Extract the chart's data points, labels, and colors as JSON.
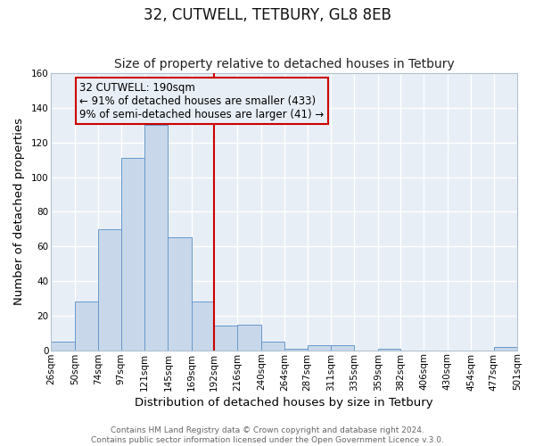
{
  "title": "32, CUTWELL, TETBURY, GL8 8EB",
  "subtitle": "Size of property relative to detached houses in Tetbury",
  "xlabel": "Distribution of detached houses by size in Tetbury",
  "ylabel": "Number of detached properties",
  "bin_edges": [
    26,
    50,
    74,
    97,
    121,
    145,
    169,
    192,
    216,
    240,
    264,
    287,
    311,
    335,
    359,
    382,
    406,
    430,
    454,
    477,
    501
  ],
  "bar_heights": [
    5,
    28,
    70,
    111,
    130,
    65,
    28,
    14,
    15,
    5,
    1,
    3,
    3,
    0,
    1,
    0,
    0,
    0,
    0,
    2
  ],
  "bar_color": "#c8d8ea",
  "bar_edgecolor": "#6699cc",
  "vline_x": 192,
  "vline_color": "#cc0000",
  "annotation_text": "32 CUTWELL: 190sqm\n← 91% of detached houses are smaller (433)\n9% of semi-detached houses are larger (41) →",
  "annotation_box_edgecolor": "#cc0000",
  "ylim": [
    0,
    160
  ],
  "yticks": [
    0,
    20,
    40,
    60,
    80,
    100,
    120,
    140,
    160
  ],
  "tick_labels": [
    "26sqm",
    "50sqm",
    "74sqm",
    "97sqm",
    "121sqm",
    "145sqm",
    "169sqm",
    "192sqm",
    "216sqm",
    "240sqm",
    "264sqm",
    "287sqm",
    "311sqm",
    "335sqm",
    "359sqm",
    "382sqm",
    "406sqm",
    "430sqm",
    "454sqm",
    "477sqm",
    "501sqm"
  ],
  "footer_line1": "Contains HM Land Registry data © Crown copyright and database right 2024.",
  "footer_line2": "Contains public sector information licensed under the Open Government Licence v.3.0.",
  "background_color": "#ffffff",
  "plot_bg_color": "#e8eef5",
  "grid_color": "#ffffff",
  "title_fontsize": 12,
  "subtitle_fontsize": 10,
  "axis_label_fontsize": 9.5,
  "tick_fontsize": 7.5,
  "annotation_fontsize": 8.5,
  "footer_fontsize": 6.5
}
